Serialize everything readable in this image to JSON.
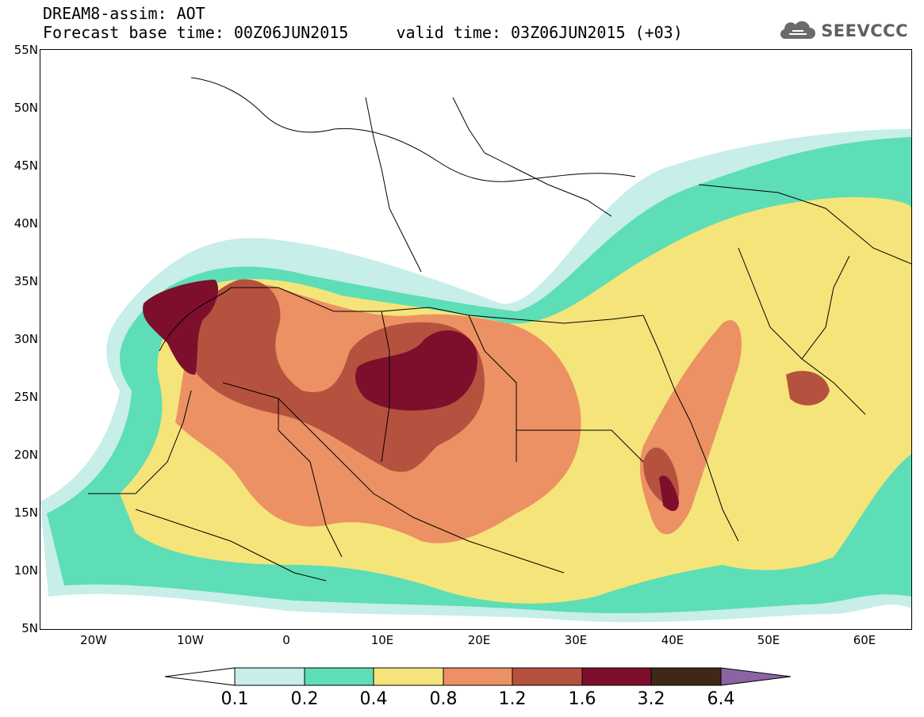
{
  "title": {
    "line1": "DREAM8-assim: AOT",
    "line2": "Forecast base time: 00Z06JUN2015     valid time: 03Z06JUN2015 (+03)"
  },
  "brand": {
    "text": "SEEVCCC",
    "icon": "cloud-logo-icon"
  },
  "latitude_labels": [
    "55N",
    "50N",
    "45N",
    "40N",
    "35N",
    "30N",
    "25N",
    "20N",
    "15N",
    "10N",
    "5N"
  ],
  "longitude_labels": [
    "20W",
    "10W",
    "0",
    "10E",
    "20E",
    "30E",
    "40E",
    "50E",
    "60E"
  ],
  "colorbar": {
    "levels": [
      "0.1",
      "0.2",
      "0.4",
      "0.8",
      "1.2",
      "1.6",
      "3.2",
      "6.4"
    ],
    "colors": {
      "under": "#ffffff",
      "c1": "#c7eee9",
      "c2": "#5ddeb6",
      "c3": "#f5e47a",
      "c4": "#ec9163",
      "c5": "#b5523f",
      "c6": "#7d0f2c",
      "c7": "#3f2916",
      "over": "#8c64a4"
    }
  },
  "map": {
    "projection": "cylindrical lat-lon",
    "lon_range": [
      -25,
      65
    ],
    "lat_range": [
      5,
      55
    ]
  }
}
